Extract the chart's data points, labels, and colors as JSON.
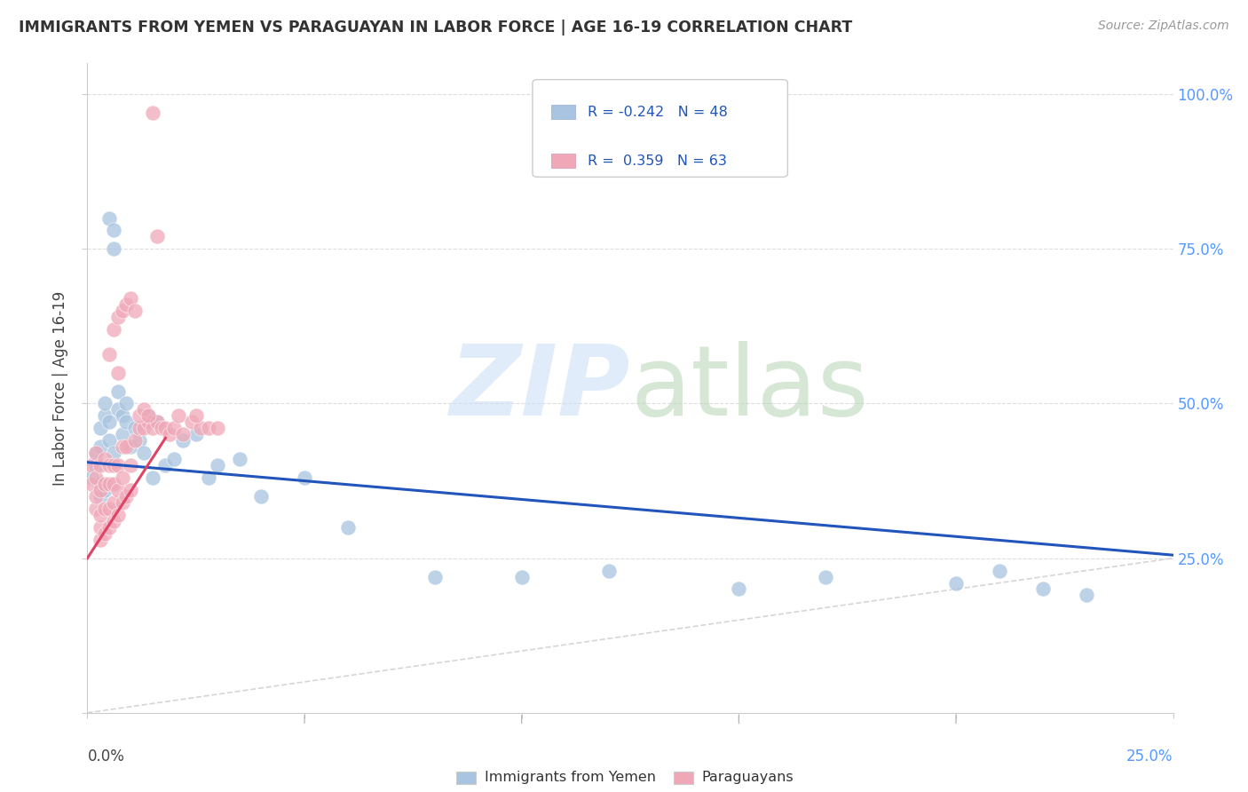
{
  "title": "IMMIGRANTS FROM YEMEN VS PARAGUAYAN IN LABOR FORCE | AGE 16-19 CORRELATION CHART",
  "source": "Source: ZipAtlas.com",
  "ylabel": "In Labor Force | Age 16-19",
  "legend_blue": {
    "R": "-0.242",
    "N": "48",
    "label": "Immigrants from Yemen"
  },
  "legend_pink": {
    "R": "0.359",
    "N": "63",
    "label": "Paraguayans"
  },
  "blue_color": "#a8c4e0",
  "pink_color": "#f0a8b8",
  "blue_line_color": "#2255bb",
  "pink_line_color": "#dd4466",
  "blue_scatter_x": [
    0.001,
    0.002,
    0.002,
    0.003,
    0.003,
    0.003,
    0.003,
    0.004,
    0.004,
    0.004,
    0.005,
    0.005,
    0.005,
    0.006,
    0.006,
    0.006,
    0.007,
    0.007,
    0.008,
    0.008,
    0.009,
    0.009,
    0.01,
    0.011,
    0.012,
    0.013,
    0.014,
    0.015,
    0.016,
    0.018,
    0.02,
    0.022,
    0.025,
    0.028,
    0.03,
    0.035,
    0.04,
    0.05,
    0.06,
    0.08,
    0.1,
    0.12,
    0.15,
    0.17,
    0.2,
    0.21,
    0.22,
    0.23
  ],
  "blue_scatter_y": [
    0.38,
    0.4,
    0.42,
    0.35,
    0.37,
    0.43,
    0.46,
    0.36,
    0.48,
    0.5,
    0.44,
    0.47,
    0.8,
    0.42,
    0.75,
    0.78,
    0.49,
    0.52,
    0.45,
    0.48,
    0.5,
    0.47,
    0.43,
    0.46,
    0.44,
    0.42,
    0.48,
    0.38,
    0.47,
    0.4,
    0.41,
    0.44,
    0.45,
    0.38,
    0.4,
    0.41,
    0.35,
    0.38,
    0.3,
    0.22,
    0.22,
    0.23,
    0.2,
    0.22,
    0.21,
    0.23,
    0.2,
    0.19
  ],
  "pink_scatter_x": [
    0.001,
    0.001,
    0.002,
    0.002,
    0.002,
    0.002,
    0.003,
    0.003,
    0.003,
    0.003,
    0.003,
    0.004,
    0.004,
    0.004,
    0.004,
    0.005,
    0.005,
    0.005,
    0.005,
    0.006,
    0.006,
    0.006,
    0.006,
    0.007,
    0.007,
    0.007,
    0.007,
    0.008,
    0.008,
    0.008,
    0.009,
    0.009,
    0.01,
    0.01,
    0.011,
    0.012,
    0.013,
    0.014,
    0.015,
    0.016,
    0.017,
    0.018,
    0.019,
    0.02,
    0.021,
    0.022,
    0.024,
    0.026,
    0.028,
    0.03,
    0.005,
    0.006,
    0.007,
    0.008,
    0.009,
    0.01,
    0.011,
    0.012,
    0.013,
    0.014,
    0.015,
    0.016,
    0.025
  ],
  "pink_scatter_y": [
    0.37,
    0.4,
    0.33,
    0.35,
    0.38,
    0.42,
    0.28,
    0.3,
    0.32,
    0.36,
    0.4,
    0.29,
    0.33,
    0.37,
    0.41,
    0.3,
    0.33,
    0.37,
    0.4,
    0.31,
    0.34,
    0.37,
    0.4,
    0.32,
    0.36,
    0.4,
    0.55,
    0.34,
    0.38,
    0.43,
    0.35,
    0.43,
    0.36,
    0.4,
    0.44,
    0.46,
    0.46,
    0.47,
    0.46,
    0.47,
    0.46,
    0.46,
    0.45,
    0.46,
    0.48,
    0.45,
    0.47,
    0.46,
    0.46,
    0.46,
    0.58,
    0.62,
    0.64,
    0.65,
    0.66,
    0.67,
    0.65,
    0.48,
    0.49,
    0.48,
    0.97,
    0.77,
    0.48
  ],
  "xlim": [
    0.0,
    0.25
  ],
  "ylim": [
    0.0,
    1.05
  ],
  "yticks": [
    0.0,
    0.25,
    0.5,
    0.75,
    1.0
  ],
  "yticklabels": [
    "",
    "25.0%",
    "50.0%",
    "75.0%",
    "100.0%"
  ],
  "xtick_left": "0.0%",
  "xtick_right": "25.0%"
}
